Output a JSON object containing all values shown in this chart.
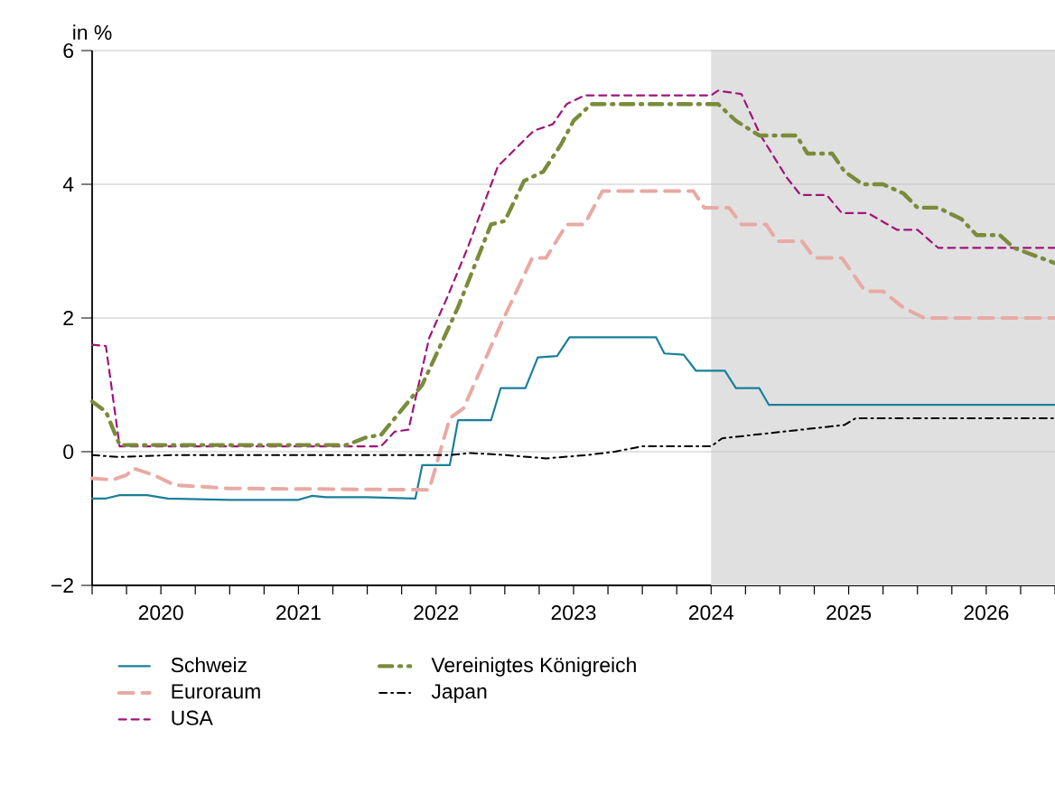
{
  "chart_data": {
    "type": "line",
    "ylabel": "in %",
    "xlim": [
      2020,
      2027
    ],
    "ylim": [
      -2,
      6
    ],
    "yticks": [
      {
        "value": -2,
        "label": "−2"
      },
      0,
      2,
      4,
      6
    ],
    "xticks": [
      {
        "value": 2020,
        "label": null
      },
      {
        "value": 2020.5,
        "label": "2020"
      },
      {
        "value": 2021,
        "label": null
      },
      {
        "value": 2021.5,
        "label": "2021"
      },
      {
        "value": 2022,
        "label": null
      },
      {
        "value": 2022.5,
        "label": "2022"
      },
      {
        "value": 2023,
        "label": null
      },
      {
        "value": 2023.5,
        "label": "2023"
      },
      {
        "value": 2024,
        "label": null
      },
      {
        "value": 2024.5,
        "label": "2024"
      },
      {
        "value": 2025,
        "label": null
      },
      {
        "value": 2025.5,
        "label": "2025"
      },
      {
        "value": 2026,
        "label": null
      },
      {
        "value": 2026.5,
        "label": "2026"
      },
      {
        "value": 2027,
        "label": null
      }
    ],
    "grid": "y",
    "legend": "bottom",
    "marker": "none",
    "bands": [
      {
        "axis": "x",
        "from": 2024.5,
        "to": 2027,
        "color": "#e0e0e0"
      }
    ],
    "series": [
      {
        "name": "Schweiz",
        "color": "#1a7f9a",
        "line_style": "solid",
        "x": [
          2020,
          2020.1,
          2020.2,
          2020.4,
          2020.55,
          2021,
          2021.5,
          2021.6,
          2021.7,
          2022,
          2022.35,
          2022.4,
          2022.6,
          2022.66,
          2022.9,
          2022.97,
          2023.15,
          2023.24,
          2023.38,
          2023.47,
          2024.1,
          2024.16,
          2024.3,
          2024.39,
          2024.6,
          2024.68,
          2024.85,
          2024.92,
          2027
        ],
        "values": [
          -0.7,
          -0.7,
          -0.65,
          -0.65,
          -0.7,
          -0.72,
          -0.72,
          -0.66,
          -0.68,
          -0.68,
          -0.7,
          -0.2,
          -0.2,
          0.47,
          0.47,
          0.95,
          0.95,
          1.41,
          1.43,
          1.71,
          1.71,
          1.47,
          1.45,
          1.21,
          1.21,
          0.95,
          0.95,
          0.7,
          0.7
        ]
      },
      {
        "name": "Euroraum",
        "color": "#e8aaa3",
        "line_style": "dashed",
        "x": [
          2020,
          2020.15,
          2020.25,
          2020.3,
          2020.45,
          2020.6,
          2021,
          2022.45,
          2022.6,
          2022.7,
          2022.97,
          2023.2,
          2023.3,
          2023.45,
          2023.58,
          2023.71,
          2024.37,
          2024.45,
          2024.63,
          2024.72,
          2024.9,
          2024.98,
          2025.16,
          2025.25,
          2025.45,
          2025.62,
          2025.75,
          2025.9,
          2026.05,
          2027
        ],
        "values": [
          -0.4,
          -0.42,
          -0.35,
          -0.25,
          -0.35,
          -0.5,
          -0.55,
          -0.57,
          0.5,
          0.65,
          1.9,
          2.9,
          2.9,
          3.4,
          3.4,
          3.9,
          3.9,
          3.65,
          3.65,
          3.4,
          3.4,
          3.15,
          3.15,
          2.9,
          2.9,
          2.4,
          2.4,
          2.15,
          2.0,
          2.0
        ]
      },
      {
        "name": "USA",
        "color": "#a0157a",
        "line_style": "dashed",
        "x": [
          2020,
          2020.1,
          2020.2,
          2022.1,
          2022.2,
          2022.3,
          2022.45,
          2022.58,
          2022.73,
          2022.95,
          2023.21,
          2023.35,
          2023.45,
          2023.58,
          2024.5,
          2024.55,
          2024.72,
          2024.86,
          2025.05,
          2025.15,
          2025.34,
          2025.45,
          2025.64,
          2025.85,
          2026,
          2026.15,
          2027
        ],
        "values": [
          1.6,
          1.58,
          0.08,
          0.08,
          0.3,
          0.33,
          1.7,
          2.3,
          3.05,
          4.27,
          4.8,
          4.9,
          5.2,
          5.33,
          5.33,
          5.4,
          5.35,
          4.73,
          4.1,
          3.84,
          3.84,
          3.57,
          3.57,
          3.32,
          3.32,
          3.05,
          3.05
        ]
      },
      {
        "name": "Vereinigtes Königreich",
        "color": "#7a8b3a",
        "line_style": "dashdot",
        "x": [
          2020,
          2020.1,
          2020.2,
          2021.85,
          2022,
          2022.1,
          2022.2,
          2022.36,
          2022.4,
          2022.66,
          2022.9,
          2023,
          2023.14,
          2023.28,
          2023.41,
          2023.5,
          2023.63,
          2024.55,
          2024.68,
          2024.85,
          2025.12,
          2025.2,
          2025.38,
          2025.47,
          2025.6,
          2025.75,
          2025.9,
          2026,
          2026.15,
          2026.32,
          2026.43,
          2026.6,
          2026.7,
          2027
        ],
        "values": [
          0.75,
          0.6,
          0.1,
          0.1,
          0.22,
          0.25,
          0.5,
          0.9,
          1.0,
          2.16,
          3.4,
          3.45,
          4.05,
          4.19,
          4.6,
          4.95,
          5.2,
          5.2,
          4.95,
          4.73,
          4.73,
          4.46,
          4.46,
          4.19,
          4.0,
          4.0,
          3.86,
          3.65,
          3.65,
          3.48,
          3.24,
          3.24,
          3.05,
          2.82
        ]
      },
      {
        "name": "Japan",
        "color": "#000000",
        "line_style": "dashdot",
        "x": [
          2020,
          2020.2,
          2020.6,
          2022.6,
          2022.75,
          2023,
          2023.3,
          2023.6,
          2023.8,
          2024,
          2024.5,
          2024.58,
          2025.47,
          2025.55,
          2027
        ],
        "values": [
          -0.05,
          -0.08,
          -0.05,
          -0.05,
          -0.02,
          -0.05,
          -0.1,
          -0.05,
          0,
          0.08,
          0.08,
          0.2,
          0.4,
          0.5,
          0.5
        ]
      }
    ]
  }
}
